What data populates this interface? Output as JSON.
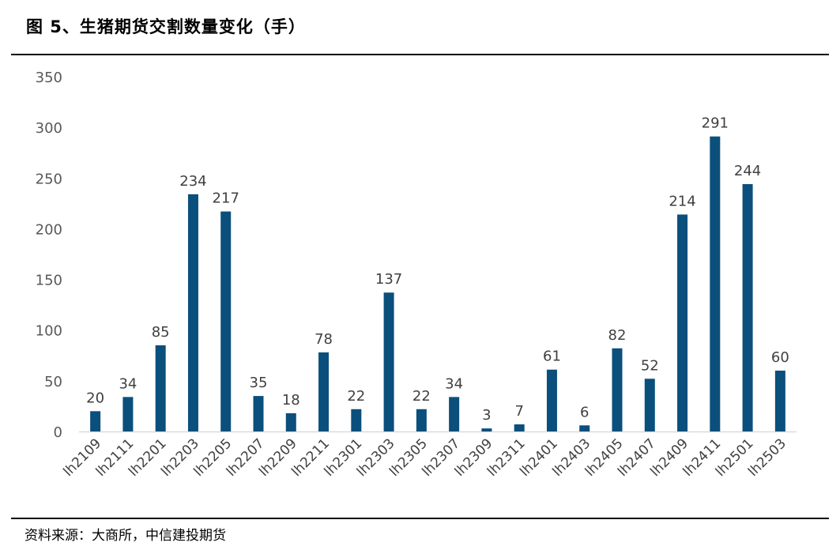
{
  "figure": {
    "title": "图 5、生猪期货交割数量变化（手）",
    "source": "资料来源：大商所，中信建投期货"
  },
  "colors": {
    "bar": "#0B4F7C",
    "axis": "#d9d9d9",
    "text": "#595959"
  },
  "chart_data": {
    "type": "bar",
    "title": "图 5、生猪期货交割数量变化（手）",
    "xlabel": "",
    "ylabel": "",
    "ylim": [
      0,
      350
    ],
    "yticks": [
      0,
      50,
      100,
      150,
      200,
      250,
      300,
      350
    ],
    "grid": false,
    "legend": "none",
    "categories": [
      "lh2109",
      "lh2111",
      "lh2201",
      "lh2203",
      "lh2205",
      "lh2207",
      "lh2209",
      "lh2211",
      "lh2301",
      "lh2303",
      "lh2305",
      "lh2307",
      "lh2309",
      "lh2311",
      "lh2401",
      "lh2403",
      "lh2405",
      "lh2407",
      "lh2409",
      "lh2411",
      "lh2501",
      "lh2503"
    ],
    "values": [
      20,
      34,
      85,
      234,
      217,
      35,
      18,
      78,
      22,
      137,
      22,
      34,
      3,
      7,
      61,
      6,
      82,
      52,
      214,
      291,
      244,
      60
    ]
  }
}
